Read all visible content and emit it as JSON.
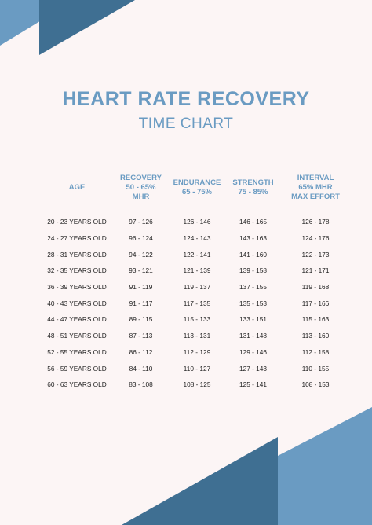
{
  "colors": {
    "background": "#fcf5f5",
    "accent_light": "#6a9bc2",
    "accent_dark": "#3f6f92",
    "text": "#222222"
  },
  "title": "HEART RATE RECOVERY",
  "subtitle": "TIME CHART",
  "table": {
    "headers": [
      [
        "AGE"
      ],
      [
        "RECOVERY",
        "50 - 65%",
        "MHR"
      ],
      [
        "ENDURANCE",
        "65 - 75%"
      ],
      [
        "STRENGTH",
        "75 - 85%"
      ],
      [
        "INTERVAL",
        "65% MHR",
        "MAX EFFORT"
      ]
    ],
    "rows": [
      [
        "20 - 23 YEARS OLD",
        "97 - 126",
        "126 - 146",
        "146 - 165",
        "126 - 178"
      ],
      [
        "24 - 27 YEARS OLD",
        "96 - 124",
        "124 - 143",
        "143 - 163",
        "124 - 176"
      ],
      [
        "28 - 31 YEARS OLD",
        "94 - 122",
        "122 - 141",
        "141 - 160",
        "122 - 173"
      ],
      [
        "32 - 35 YEARS OLD",
        "93 - 121",
        "121 - 139",
        "139 - 158",
        "121 - 171"
      ],
      [
        "36 - 39 YEARS OLD",
        "91 - 119",
        "119 - 137",
        "137 - 155",
        "119 - 168"
      ],
      [
        "40 - 43 YEARS OLD",
        "91 - 117",
        "117 - 135",
        "135 - 153",
        "117 - 166"
      ],
      [
        "44 - 47 YEARS OLD",
        "89 - 115",
        "115 - 133",
        "133 - 151",
        "115 - 163"
      ],
      [
        "48 - 51 YEARS OLD",
        "87 - 113",
        "113 - 131",
        "131 - 148",
        "113 - 160"
      ],
      [
        "52 - 55 YEARS OLD",
        "86 - 112",
        "112 - 129",
        "129 - 146",
        "112 - 158"
      ],
      [
        "56 - 59 YEARS OLD",
        "84 - 110",
        "110 - 127",
        "127 - 143",
        "110 - 155"
      ],
      [
        "60 - 63 YEARS OLD",
        "83 - 108",
        "108 - 125",
        "125 - 141",
        "108 - 153"
      ]
    ]
  }
}
